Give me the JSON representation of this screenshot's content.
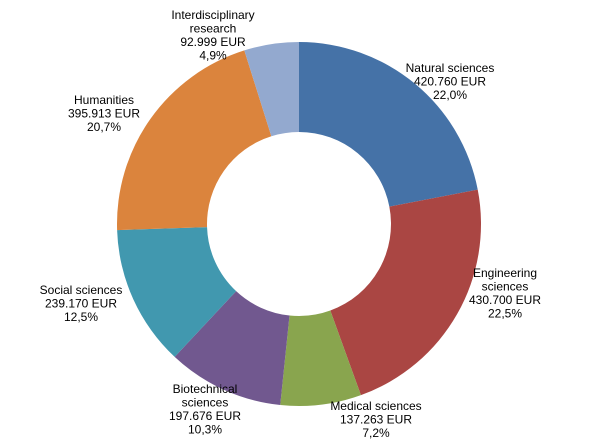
{
  "chart_data": {
    "type": "pie",
    "variant": "donut",
    "title": "",
    "unit": "EUR",
    "slices": [
      {
        "name_lines": [
          "Natural sciences"
        ],
        "name": "Natural sciences",
        "value_text": "420.760 EUR",
        "value": 420760,
        "percent_text": "22,0%",
        "percent": 22.0,
        "color": "#4572a7"
      },
      {
        "name_lines": [
          "Engineering",
          "sciences"
        ],
        "name": "Engineering sciences",
        "value_text": "430.700 EUR",
        "value": 430700,
        "percent_text": "22,5%",
        "percent": 22.5,
        "color": "#aa4643"
      },
      {
        "name_lines": [
          "Medical sciences"
        ],
        "name": "Medical sciences",
        "value_text": "137.263 EUR",
        "value": 137263,
        "percent_text": "7,2%",
        "percent": 7.2,
        "color": "#89a54e"
      },
      {
        "name_lines": [
          "Biotechnical",
          "sciences"
        ],
        "name": "Biotechnical sciences",
        "value_text": "197.676 EUR",
        "value": 197676,
        "percent_text": "10,3%",
        "percent": 10.3,
        "color": "#71588f"
      },
      {
        "name_lines": [
          "Social sciences"
        ],
        "name": "Social sciences",
        "value_text": "239.170 EUR",
        "value": 239170,
        "percent_text": "12,5%",
        "percent": 12.5,
        "color": "#4198af"
      },
      {
        "name_lines": [
          "Humanities"
        ],
        "name": "Humanities",
        "value_text": "395.913 EUR",
        "value": 395913,
        "percent_text": "20,7%",
        "percent": 20.7,
        "color": "#db843d"
      },
      {
        "name_lines": [
          "Interdisciplinary",
          "research"
        ],
        "name": "Interdisciplinary research",
        "value_text": "92.999 EUR",
        "value": 92999,
        "percent_text": "4,9%",
        "percent": 4.9,
        "color": "#93a9cf"
      }
    ],
    "legend": "none",
    "data_labels": "outside"
  }
}
